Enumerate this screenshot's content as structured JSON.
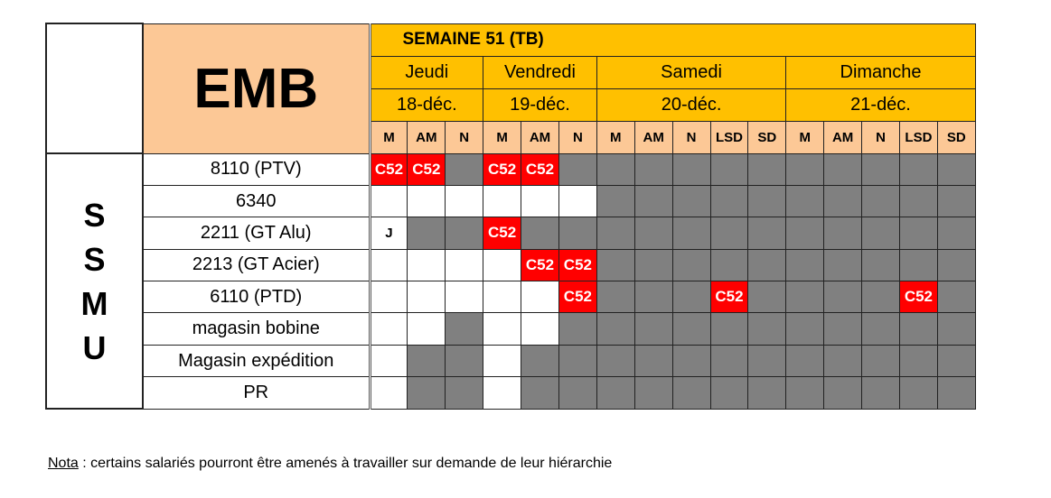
{
  "header": {
    "title": "EMB",
    "week": "SEMAINE 51 (TB)",
    "days": [
      {
        "name": "Jeudi",
        "date": "18-déc.",
        "shifts": [
          "M",
          "AM",
          "N"
        ]
      },
      {
        "name": "Vendredi",
        "date": "19-déc.",
        "shifts": [
          "M",
          "AM",
          "N"
        ]
      },
      {
        "name": "Samedi",
        "date": "20-déc.",
        "shifts": [
          "M",
          "AM",
          "N",
          "LSD",
          "SD"
        ]
      },
      {
        "name": "Dimanche",
        "date": "21-déc.",
        "shifts": [
          "M",
          "AM",
          "N",
          "LSD",
          "SD"
        ]
      }
    ]
  },
  "group_label": "SSMU",
  "legend_colors": {
    "C52": "#ff0000",
    "grey": "#808080",
    "white": "#ffffff",
    "header": "#ffc000",
    "shift_header": "#fcc896"
  },
  "rows": [
    {
      "label": "8110 (PTV)",
      "cells": [
        "C52",
        "C52",
        "G",
        "C52",
        "C52",
        "G",
        "G",
        "G",
        "G",
        "G",
        "G",
        "G",
        "G",
        "G",
        "G",
        "G"
      ]
    },
    {
      "label": "6340",
      "cells": [
        "W",
        "W",
        "W",
        "W",
        "W",
        "W",
        "G",
        "G",
        "G",
        "G",
        "G",
        "G",
        "G",
        "G",
        "G",
        "G"
      ]
    },
    {
      "label": "2211 (GT Alu)",
      "cells": [
        "J",
        "G",
        "G",
        "C52",
        "G",
        "G",
        "G",
        "G",
        "G",
        "G",
        "G",
        "G",
        "G",
        "G",
        "G",
        "G"
      ]
    },
    {
      "label": "2213 (GT Acier)",
      "cells": [
        "W",
        "W",
        "W",
        "W",
        "C52",
        "C52",
        "G",
        "G",
        "G",
        "G",
        "G",
        "G",
        "G",
        "G",
        "G",
        "G"
      ]
    },
    {
      "label": "6110 (PTD)",
      "cells": [
        "W",
        "W",
        "W",
        "W",
        "W",
        "C52",
        "G",
        "G",
        "G",
        "C52",
        "G",
        "G",
        "G",
        "G",
        "C52",
        "G"
      ]
    },
    {
      "label": "magasin bobine",
      "cells": [
        "W",
        "W",
        "G",
        "W",
        "W",
        "G",
        "G",
        "G",
        "G",
        "G",
        "G",
        "G",
        "G",
        "G",
        "G",
        "G"
      ]
    },
    {
      "label": "Magasin expédition",
      "cells": [
        "W",
        "G",
        "G",
        "W",
        "G",
        "G",
        "G",
        "G",
        "G",
        "G",
        "G",
        "G",
        "G",
        "G",
        "G",
        "G"
      ]
    },
    {
      "label": "PR",
      "cells": [
        "W",
        "G",
        "G",
        "W",
        "G",
        "G",
        "G",
        "G",
        "G",
        "G",
        "G",
        "G",
        "G",
        "G",
        "G",
        "G"
      ]
    }
  ],
  "note": {
    "label": "Nota",
    "text": " : certains salariés pourront être amenés à travailler sur demande de leur hiérarchie"
  }
}
